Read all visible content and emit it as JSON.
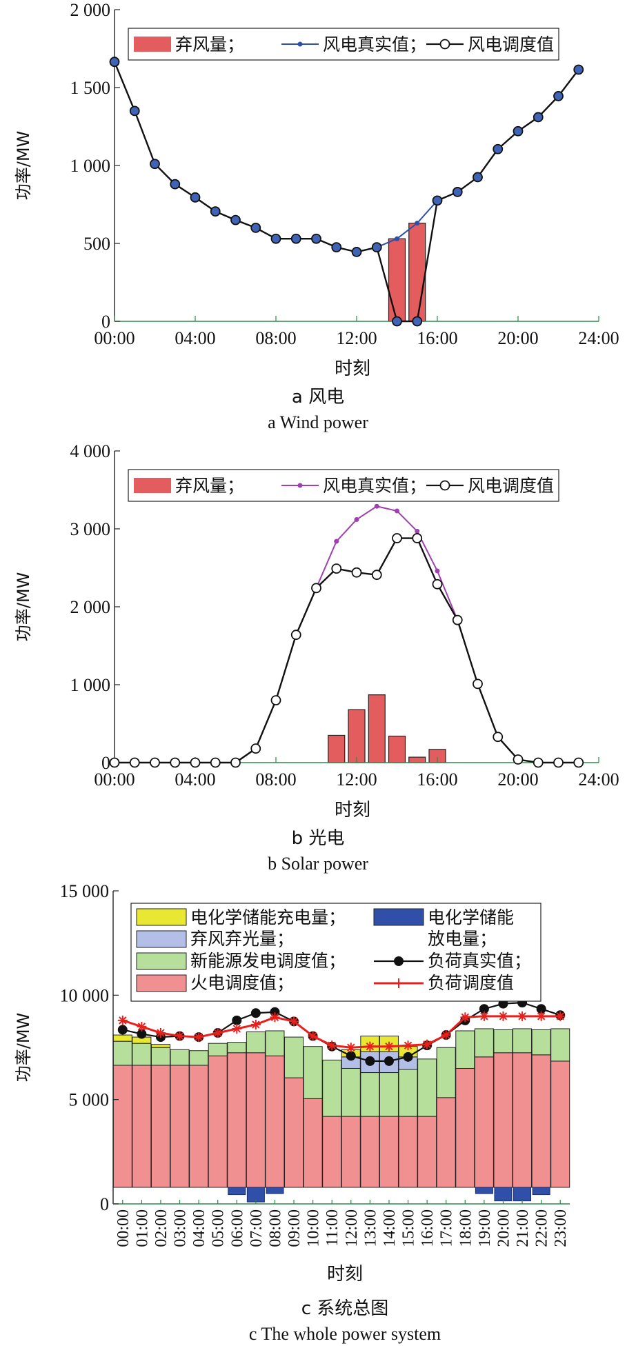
{
  "chart_data": [
    {
      "type": "bar+line",
      "ylabel": "功率/MW",
      "xlabel": "时刻",
      "caption_cn": "a  风电",
      "caption_en": "a  Wind power",
      "ylim": [
        0,
        2000
      ],
      "yticks": [
        "0",
        "500",
        "1 000",
        "1 500",
        "2 000"
      ],
      "xticks": [
        "00:00",
        "04:00",
        "08:00",
        "12:00",
        "16:00",
        "20:00",
        "24:00"
      ],
      "legend": [
        "弃风量；",
        "风电真实值；",
        "风电调度值"
      ],
      "colors": {
        "bar": "#e35d5f",
        "real": "#2d4fa8",
        "dispatch": "#111111",
        "marker_fill": "#3f64b5"
      },
      "x": [
        0,
        1,
        2,
        3,
        4,
        5,
        6,
        7,
        8,
        9,
        10,
        11,
        12,
        13,
        14,
        15,
        16,
        17,
        18,
        19,
        20,
        21,
        22,
        23
      ],
      "real": [
        1665,
        1350,
        1010,
        880,
        795,
        705,
        650,
        600,
        530,
        530,
        530,
        475,
        445,
        475,
        530,
        630,
        775,
        830,
        925,
        1105,
        1220,
        1310,
        1445,
        1615
      ],
      "dispatch": [
        1665,
        1350,
        1010,
        880,
        795,
        705,
        650,
        600,
        530,
        530,
        530,
        475,
        445,
        475,
        0,
        0,
        775,
        830,
        925,
        1105,
        1220,
        1310,
        1445,
        1615
      ],
      "curtailment": [
        0,
        0,
        0,
        0,
        0,
        0,
        0,
        0,
        0,
        0,
        0,
        0,
        0,
        0,
        530,
        630,
        0,
        0,
        0,
        0,
        0,
        0,
        0,
        0
      ]
    },
    {
      "type": "bar+line",
      "ylabel": "功率/MW",
      "xlabel": "时刻",
      "caption_cn": "b  光电",
      "caption_en": "b  Solar power",
      "ylim": [
        0,
        4000
      ],
      "yticks": [
        "0",
        "1 000",
        "2 000",
        "3 000",
        "4 000"
      ],
      "xticks": [
        "00:00",
        "04:00",
        "08:00",
        "12:00",
        "16:00",
        "20:00",
        "24:00"
      ],
      "legend": [
        "弃风量；",
        "风电真实值；",
        "风电调度值"
      ],
      "colors": {
        "bar": "#e35d5f",
        "real": "#a040b0",
        "dispatch": "#111111",
        "marker_fill": "#ffffff"
      },
      "x": [
        0,
        1,
        2,
        3,
        4,
        5,
        6,
        7,
        8,
        9,
        10,
        11,
        12,
        13,
        14,
        15,
        16,
        17,
        18,
        19,
        20,
        21,
        22,
        23
      ],
      "real": [
        0,
        0,
        0,
        0,
        0,
        0,
        0,
        180,
        800,
        1640,
        2240,
        2840,
        3120,
        3290,
        3230,
        2970,
        2460,
        1830,
        1010,
        330,
        40,
        0,
        0,
        0
      ],
      "dispatch": [
        0,
        0,
        0,
        0,
        0,
        0,
        0,
        180,
        800,
        1640,
        2240,
        2490,
        2440,
        2410,
        2880,
        2880,
        2290,
        1830,
        1010,
        330,
        40,
        0,
        0,
        0
      ],
      "curtailment": [
        0,
        0,
        0,
        0,
        0,
        0,
        0,
        0,
        0,
        0,
        0,
        350,
        680,
        870,
        340,
        70,
        170,
        0,
        0,
        0,
        0,
        0,
        0,
        0
      ]
    },
    {
      "type": "stacked-bar+line",
      "ylabel": "功率/MW",
      "xlabel": "时刻",
      "caption_cn": "c  系统总图",
      "caption_en": "c  The whole power system",
      "ylim": [
        0,
        15000
      ],
      "yticks": [
        "0",
        "5 000",
        "10 000",
        "15 000"
      ],
      "categories": [
        "00:00",
        "01:00",
        "02:00",
        "03:00",
        "04:00",
        "05:00",
        "06:00",
        "07:00",
        "08:00",
        "09:00",
        "10:00",
        "11:00",
        "12:00",
        "13:00",
        "14:00",
        "15:00",
        "16:00",
        "17:00",
        "18:00",
        "19:00",
        "20:00",
        "21:00",
        "22:00",
        "23:00"
      ],
      "legend": [
        "电化学储能充电量；",
        "电化学储能",
        "放电量；",
        "弃风弃光量；",
        "新能源发电调度值；",
        "负荷真实值；",
        "火电调度值；",
        "负荷调度值"
      ],
      "colors": {
        "charge": "#e8e833",
        "discharge": "#2f4fa8",
        "curtail": "#b3bfe6",
        "renewable": "#b7df9c",
        "thermal": "#f09090",
        "load_real": "#111111",
        "load_dispatch": "#e8201c"
      },
      "thermal": [
        5850,
        5850,
        5850,
        5850,
        5850,
        6300,
        6450,
        6450,
        6300,
        5250,
        4250,
        3400,
        3400,
        3400,
        3400,
        3400,
        3400,
        4300,
        5700,
        6250,
        6450,
        6450,
        6350,
        6050
      ],
      "renewable": [
        1150,
        1050,
        850,
        750,
        700,
        600,
        500,
        1000,
        1200,
        1950,
        2500,
        2700,
        2300,
        2100,
        2100,
        2250,
        2750,
        2400,
        1800,
        1350,
        1100,
        1150,
        1200,
        1550
      ],
      "curtail": [
        0,
        0,
        0,
        0,
        0,
        0,
        0,
        0,
        0,
        0,
        0,
        0,
        550,
        1000,
        1000,
        600,
        0,
        0,
        0,
        0,
        0,
        0,
        0,
        0
      ],
      "charge": [
        300,
        300,
        150,
        0,
        0,
        0,
        0,
        0,
        0,
        0,
        0,
        0,
        350,
        750,
        750,
        500,
        0,
        0,
        0,
        0,
        0,
        0,
        0,
        0
      ],
      "discharge": [
        0,
        0,
        0,
        0,
        0,
        0,
        350,
        700,
        300,
        0,
        0,
        0,
        0,
        0,
        0,
        0,
        0,
        0,
        0,
        300,
        650,
        650,
        350,
        0
      ],
      "load_real": [
        7550,
        7350,
        7200,
        7250,
        7200,
        7400,
        8000,
        8350,
        8400,
        7950,
        7250,
        6750,
        6300,
        6050,
        6050,
        6250,
        6800,
        7300,
        8000,
        8550,
        8800,
        8850,
        8550,
        8250
      ],
      "load_dispatch": [
        8000,
        7700,
        7400,
        7250,
        7200,
        7400,
        7600,
        7800,
        8150,
        7950,
        7250,
        6800,
        6700,
        6750,
        6750,
        6800,
        6850,
        7300,
        8150,
        8200,
        8200,
        8200,
        8200,
        8200
      ]
    }
  ]
}
